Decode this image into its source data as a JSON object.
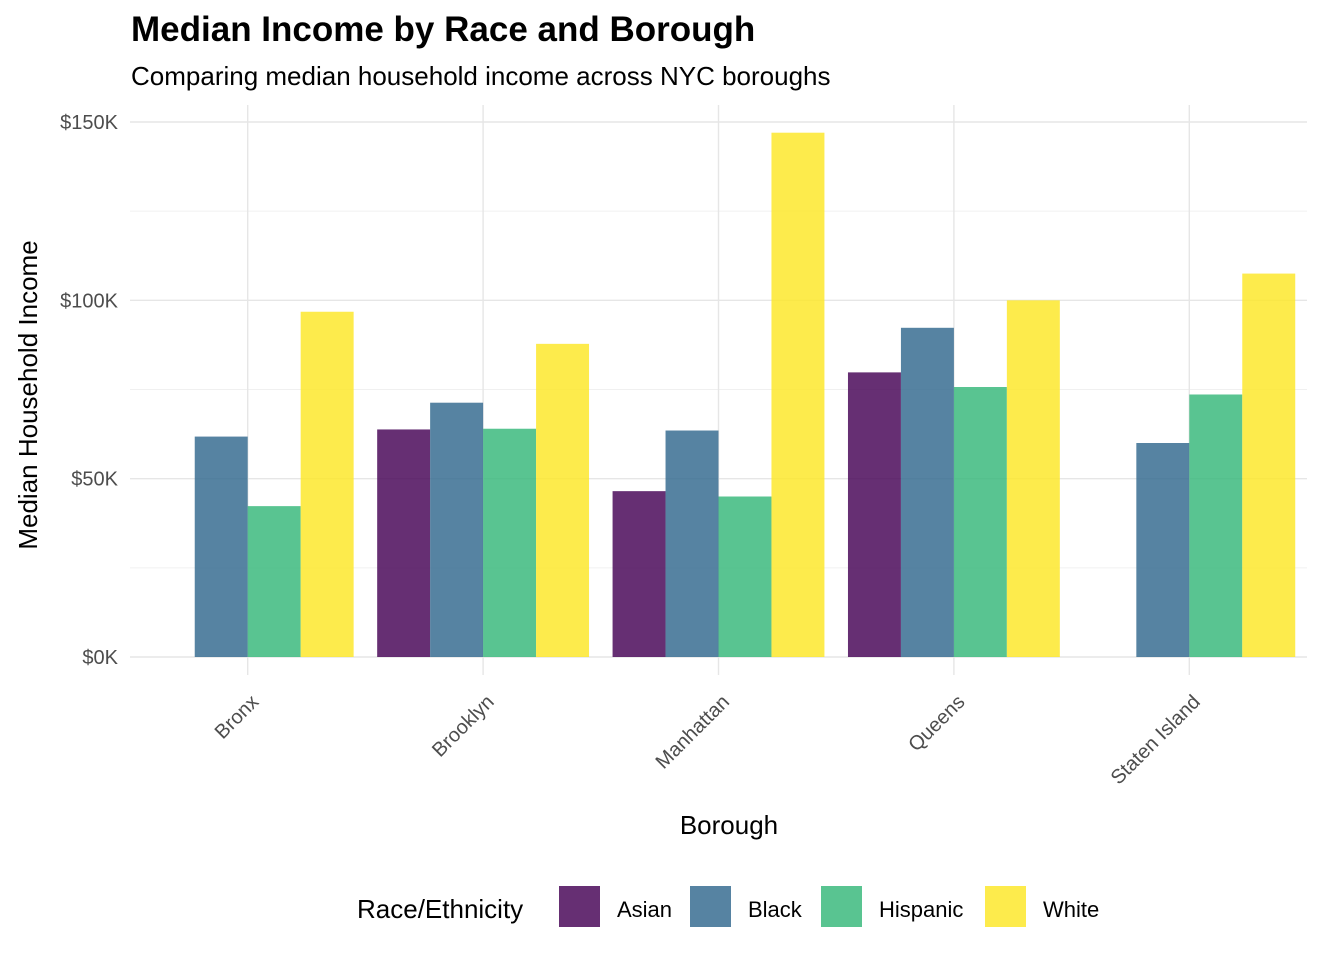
{
  "chart_data": {
    "type": "bar",
    "title": "Median Income by Race and Borough",
    "subtitle": "Comparing median household income across NYC boroughs",
    "xlabel": "Borough",
    "ylabel": "Median Household Income",
    "categories": [
      "Bronx",
      "Brooklyn",
      "Manhattan",
      "Queens",
      "Staten Island"
    ],
    "ylim": [
      0,
      150000
    ],
    "y_ticks": [
      {
        "value": 0,
        "label": "$0K"
      },
      {
        "value": 50000,
        "label": "$50K"
      },
      {
        "value": 100000,
        "label": "$100K"
      },
      {
        "value": 150000,
        "label": "$150K"
      }
    ],
    "legend_title": "Race/Ethnicity",
    "legend_position": "bottom",
    "grid": true,
    "series": [
      {
        "name": "Asian",
        "color": "#440154",
        "values": [
          null,
          63800,
          46500,
          79800,
          null
        ]
      },
      {
        "name": "Black",
        "color": "#31688E",
        "values": [
          61800,
          71300,
          63500,
          92300,
          60000
        ]
      },
      {
        "name": "Hispanic",
        "color": "#35B779",
        "values": [
          42300,
          64000,
          45000,
          75700,
          73600
        ]
      },
      {
        "name": "White",
        "color": "#FDE725",
        "values": [
          96800,
          87800,
          147000,
          100000,
          107500
        ]
      }
    ]
  }
}
